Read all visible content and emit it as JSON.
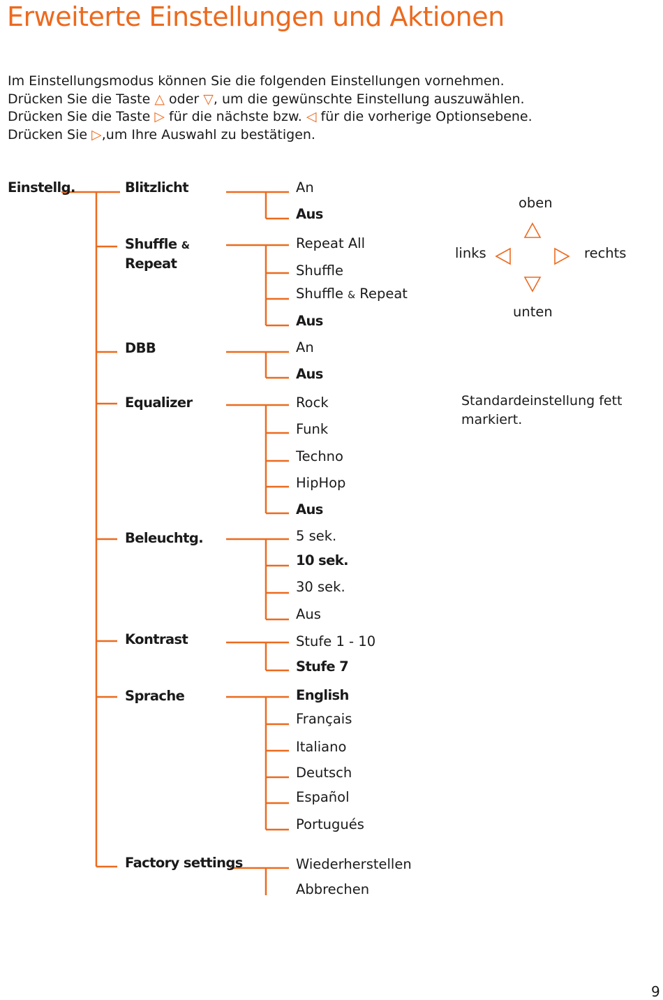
{
  "title": "Erweiterte Einstellungen und Aktionen",
  "intro": {
    "line1": "Im Einstellungsmodus können Sie die folgenden Einstellungen vornehmen.",
    "line2_a": "Drücken Sie die Taste",
    "line2_b": "oder",
    "line2_c": ", um die gewünschte Einstellung auszuwählen.",
    "line3_a": "Drücken Sie die Taste",
    "line3_b": "für die nächste bzw.",
    "line3_c": "für die vorherige Optionsebene.",
    "line4_a": "Drücken Sie",
    "line4_b": ",um Ihre Auswahl zu bestätigen.",
    "tri_up": "△",
    "tri_down": "▽",
    "tri_right": "▷",
    "tri_left": "◁"
  },
  "tree": {
    "root": "Einstellg.",
    "categories": [
      {
        "label": "Blitzlicht",
        "options": [
          {
            "text": "An"
          },
          {
            "text": "Aus",
            "default": true
          }
        ]
      },
      {
        "label_a": "Shuffle",
        "label_amp": "&",
        "label_b": "Repeat",
        "options": [
          {
            "text": "Repeat All"
          },
          {
            "text": "Shuffle"
          },
          {
            "text_a": "Shuffle",
            "text_amp": "&",
            "text_b": "Repeat"
          },
          {
            "text": "Aus",
            "default": true
          }
        ]
      },
      {
        "label": "DBB",
        "options": [
          {
            "text": "An"
          },
          {
            "text": "Aus",
            "default": true
          }
        ]
      },
      {
        "label": "Equalizer",
        "options": [
          {
            "text": "Rock"
          },
          {
            "text": "Funk"
          },
          {
            "text": "Techno"
          },
          {
            "text": "HipHop"
          },
          {
            "text": "Aus",
            "default": true
          }
        ]
      },
      {
        "label": "Beleuchtg.",
        "options": [
          {
            "text": "5 sek."
          },
          {
            "text": "10 sek.",
            "default": true
          },
          {
            "text": "30 sek."
          },
          {
            "text": "Aus"
          }
        ]
      },
      {
        "label": "Kontrast",
        "options": [
          {
            "text": "Stufe 1 - 10"
          },
          {
            "text": "Stufe 7",
            "default": true
          }
        ]
      },
      {
        "label": "Sprache",
        "options": [
          {
            "text": "English",
            "default": true
          },
          {
            "text": "Français"
          },
          {
            "text": "Italiano"
          },
          {
            "text": "Deutsch"
          },
          {
            "text": "Español"
          },
          {
            "text": "Portugués"
          }
        ]
      },
      {
        "label": "Factory settings",
        "options": [
          {
            "text": "Wiederherstellen"
          },
          {
            "text": "Abbrechen"
          }
        ]
      }
    ]
  },
  "dpad": {
    "up": "oben",
    "down": "unten",
    "left": "links",
    "right": "rechts",
    "up_icon": "triangle-up-icon",
    "down_icon": "triangle-down-icon",
    "left_icon": "triangle-left-icon",
    "right_icon": "triangle-right-icon"
  },
  "note": "Standardeinstellung fett markiert.",
  "page_number": "9",
  "colors": {
    "accent": "#ec6a1e",
    "text": "#1a1a1a"
  }
}
